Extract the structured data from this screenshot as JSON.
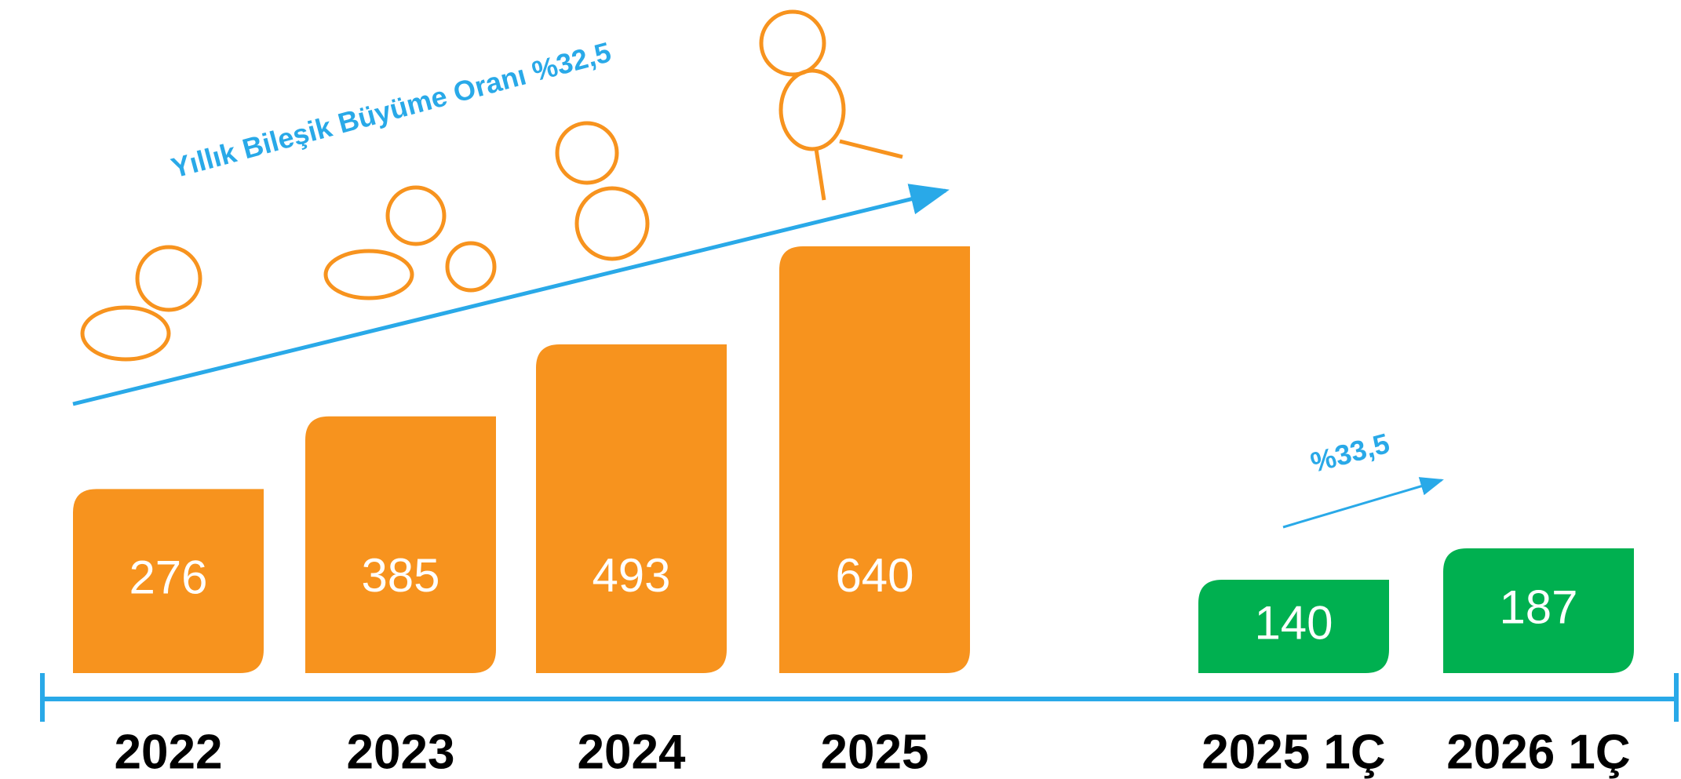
{
  "chart_data": {
    "type": "bar",
    "categories": [
      "2022",
      "2023",
      "2024",
      "2025",
      "2025 1Ç",
      "2026 1Ç"
    ],
    "values": [
      276,
      385,
      493,
      640,
      140,
      187
    ],
    "colors": [
      "#F7931E",
      "#F7931E",
      "#F7931E",
      "#F7931E",
      "#00B050",
      "#00B050"
    ],
    "annotations": [
      "Yıllık Bileşik Büyüme Oranı %32,5",
      "%33,5"
    ]
  }
}
